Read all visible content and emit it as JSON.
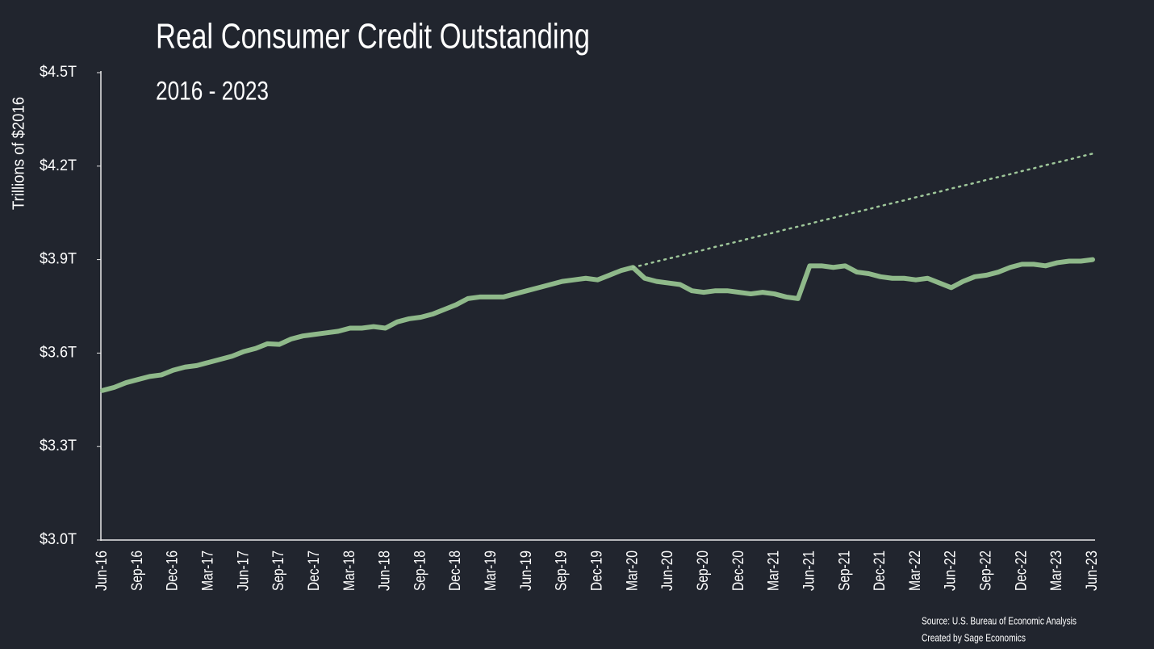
{
  "chart_data": {
    "type": "line",
    "title": "Real Consumer Credit Outstanding",
    "subtitle": "2016 - 2023",
    "y_label": "Trillions of $2016",
    "source": [
      "Source: U.S. Bureau of Economic Analysis",
      "Created by Sage Economics"
    ],
    "categories": [
      "Jun-16",
      null,
      null,
      "Sep-16",
      null,
      null,
      "Dec-16",
      null,
      null,
      "Mar-17",
      null,
      null,
      "Jun-17",
      null,
      null,
      "Sep-17",
      null,
      null,
      "Dec-17",
      null,
      null,
      "Mar-18",
      null,
      null,
      "Jun-18",
      null,
      null,
      "Sep-18",
      null,
      null,
      "Dec-18",
      null,
      null,
      "Mar-19",
      null,
      null,
      "Jun-19",
      null,
      null,
      "Sep-19",
      null,
      null,
      "Dec-19",
      null,
      null,
      "Mar-20",
      null,
      null,
      "Jun-20",
      null,
      null,
      "Sep-20",
      null,
      null,
      "Dec-20",
      null,
      null,
      "Mar-21",
      null,
      null,
      "Jun-21",
      null,
      null,
      "Sep-21",
      null,
      null,
      "Dec-21",
      null,
      null,
      "Mar-22",
      null,
      null,
      "Jun-22",
      null,
      null,
      "Sep-22",
      null,
      null,
      "Dec-22",
      null,
      null,
      "Mar-23",
      null,
      null,
      "Jun-23"
    ],
    "series": [
      {
        "color": "#8fb98a",
        "style": "solid",
        "values": [
          3.48,
          3.49,
          3.505,
          3.515,
          3.525,
          3.53,
          3.545,
          3.555,
          3.56,
          3.57,
          3.58,
          3.59,
          3.605,
          3.615,
          3.63,
          3.628,
          3.645,
          3.655,
          3.66,
          3.665,
          3.67,
          3.68,
          3.68,
          3.685,
          3.68,
          3.7,
          3.71,
          3.715,
          3.725,
          3.74,
          3.755,
          3.775,
          3.78,
          3.78,
          3.78,
          3.79,
          3.8,
          3.81,
          3.82,
          3.83,
          3.835,
          3.84,
          3.835,
          3.85,
          3.865,
          3.875,
          3.84,
          3.83,
          3.825,
          3.82,
          3.8,
          3.795,
          3.8,
          3.8,
          3.795,
          3.79,
          3.795,
          3.79,
          3.78,
          3.775,
          3.88,
          3.88,
          3.875,
          3.88,
          3.86,
          3.855,
          3.845,
          3.84,
          3.84,
          3.835,
          3.84,
          3.825,
          3.81,
          3.83,
          3.845,
          3.85,
          3.86,
          3.875,
          3.885,
          3.885,
          3.88,
          3.89,
          3.895,
          3.895,
          3.9
        ]
      },
      {
        "color": "#9fc79a",
        "style": "dotted",
        "values": [
          null,
          null,
          null,
          null,
          null,
          null,
          null,
          null,
          null,
          null,
          null,
          null,
          null,
          null,
          null,
          null,
          null,
          null,
          null,
          null,
          null,
          null,
          null,
          null,
          null,
          null,
          null,
          null,
          null,
          null,
          null,
          null,
          null,
          null,
          null,
          null,
          null,
          null,
          null,
          null,
          null,
          null,
          null,
          null,
          null,
          3.875,
          3.884,
          3.894,
          3.903,
          3.912,
          3.922,
          3.931,
          3.941,
          3.95,
          3.959,
          3.969,
          3.978,
          3.987,
          3.997,
          4.006,
          4.015,
          4.025,
          4.034,
          4.043,
          4.053,
          4.062,
          4.072,
          4.081,
          4.09,
          4.1,
          4.109,
          4.118,
          4.128,
          4.137,
          4.146,
          4.156,
          4.165,
          4.174,
          4.184,
          4.193,
          4.203,
          4.212,
          4.221,
          4.231,
          4.24
        ]
      }
    ],
    "ylim": [
      3.0,
      4.5
    ],
    "yticks": [
      {
        "value": 3.0,
        "label": "$3.0T"
      },
      {
        "value": 3.3,
        "label": "$3.3T"
      },
      {
        "value": 3.6,
        "label": "$3.6T"
      },
      {
        "value": 3.9,
        "label": "$3.9T"
      },
      {
        "value": 4.2,
        "label": "$4.2T"
      },
      {
        "value": 4.5,
        "label": "$4.5T"
      }
    ],
    "grid": false
  }
}
